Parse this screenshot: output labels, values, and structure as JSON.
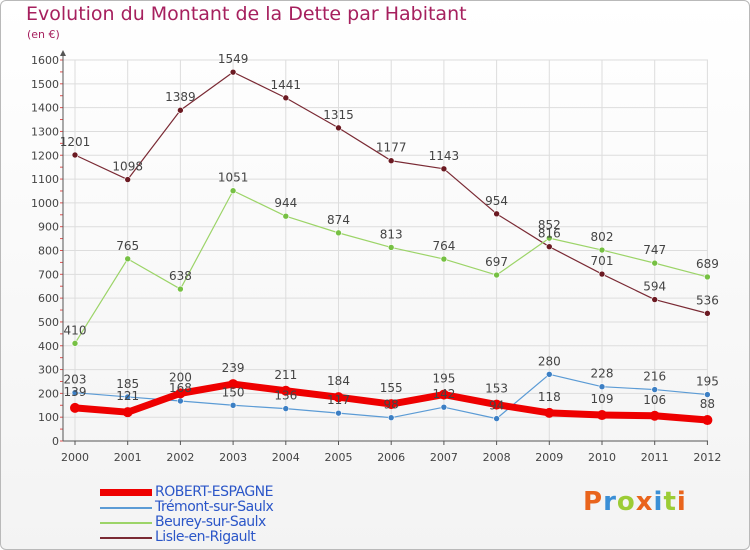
{
  "title": "Evolution du Montant de la Dette par Habitant",
  "unit": "(en €)",
  "logo": {
    "text": "Proxiti",
    "letters": [
      "P",
      "r",
      "o",
      "x",
      "i",
      "t",
      "i"
    ],
    "colors": [
      "#e9641c",
      "#3a8fd6",
      "#9ccc35",
      "#e9641c",
      "#3a8fd6",
      "#9ccc35",
      "#e9641c"
    ]
  },
  "colors": {
    "title": "#a6205e",
    "axis": "#555555",
    "grid": "#dddddd",
    "label": "#444444",
    "legend_text": "#2b56c8"
  },
  "chart_data": {
    "type": "line",
    "title": "Evolution du Montant de la Dette par Habitant",
    "ylabel": "(en €)",
    "xlabel": "",
    "x": [
      "2000",
      "2001",
      "2002",
      "2003",
      "2004",
      "2005",
      "2006",
      "2007",
      "2008",
      "2009",
      "2010",
      "2011",
      "2012"
    ],
    "ylim": [
      0,
      1600
    ],
    "yticks": [
      0,
      100,
      200,
      300,
      400,
      500,
      600,
      700,
      800,
      900,
      1000,
      1100,
      1200,
      1300,
      1400,
      1500,
      1600
    ],
    "grid": true,
    "legend_position": "bottom-left",
    "series": [
      {
        "name": "ROBERT-ESPAGNE",
        "color": "#ee0000",
        "width": 7,
        "marker": "#ee0000",
        "values": [
          139,
          121,
          200,
          239,
          211,
          184,
          155,
          195,
          153,
          118,
          109,
          106,
          88
        ],
        "labels": [
          "139",
          "121",
          "200",
          "239",
          "211",
          "184",
          "155",
          "195",
          "153",
          "118",
          "109",
          "106",
          "88"
        ]
      },
      {
        "name": "Trémont-sur-Saulx",
        "color": "#5b9bd5",
        "width": 1.2,
        "marker": "#3c7fc4",
        "values": [
          203,
          185,
          168,
          150,
          136,
          117,
          98,
          142,
          94,
          280,
          228,
          216,
          195
        ],
        "labels": [
          "203",
          "185",
          "168",
          "150",
          "136",
          "117",
          "98",
          "142",
          "94",
          "280",
          "228",
          "216",
          "195"
        ]
      },
      {
        "name": "Beurey-sur-Saulx",
        "color": "#9cd468",
        "width": 1.2,
        "marker": "#76c043",
        "values": [
          410,
          765,
          638,
          1051,
          944,
          874,
          813,
          764,
          697,
          852,
          802,
          747,
          689
        ],
        "labels": [
          "410",
          "765",
          "638",
          "1051",
          "944",
          "874",
          "813",
          "764",
          "697",
          "852",
          "802",
          "747",
          "689"
        ]
      },
      {
        "name": "Lisle-en-Rigault",
        "color": "#7a2a34",
        "width": 1.2,
        "marker": "#6b1a22",
        "values": [
          1201,
          1098,
          1389,
          1549,
          1441,
          1315,
          1177,
          1143,
          954,
          816,
          701,
          594,
          536
        ],
        "labels": [
          "1201",
          "1098",
          "1389",
          "1549",
          "1441",
          "1315",
          "1177",
          "1143",
          "954",
          "816",
          "701",
          "594",
          "536"
        ]
      }
    ]
  }
}
